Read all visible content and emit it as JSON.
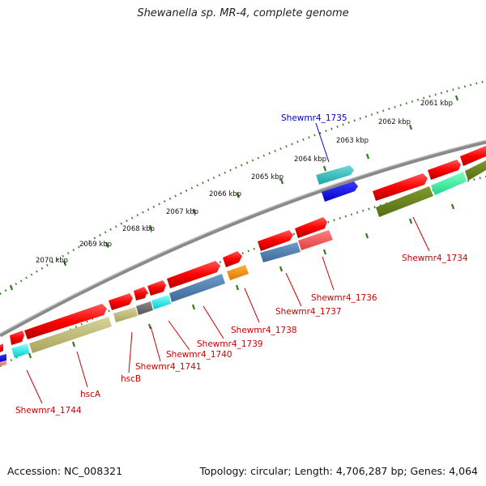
{
  "title": "Shewanella sp. MR-4, complete genome",
  "footer": {
    "accession": "Accession: NC_008321",
    "summary": "Topology: circular; Length: 4,706,287 bp; Genes: 4,064"
  },
  "colors": {
    "backbone": "#8a8a8a",
    "ticks": "#2e7d1e",
    "label_red": "#cc0000",
    "label_blue": "#0000cc"
  },
  "scale_labels": [
    "2061 kbp",
    "2062 kbp",
    "2063 kbp",
    "2064 kbp",
    "2065 kbp",
    "2066 kbp",
    "2067 kbp",
    "2068 kbp",
    "2069 kbp",
    "2070 kbp"
  ],
  "gene_labels": [
    {
      "text": "Shewmr4_1735",
      "color": "#0000cc"
    },
    {
      "text": "Shewmr4_1734",
      "color": "#cc0000"
    },
    {
      "text": "Shewmr4_1736",
      "color": "#cc0000"
    },
    {
      "text": "Shewmr4_1737",
      "color": "#cc0000"
    },
    {
      "text": "Shewmr4_1738",
      "color": "#cc0000"
    },
    {
      "text": "Shewmr4_1739",
      "color": "#cc0000"
    },
    {
      "text": "Shewmr4_1740",
      "color": "#cc0000"
    },
    {
      "text": "Shewmr4_1741",
      "color": "#cc0000"
    },
    {
      "text": "hscB",
      "color": "#cc0000"
    },
    {
      "text": "hscA",
      "color": "#cc0000"
    },
    {
      "text": "Shewmr4_1744",
      "color": "#cc0000"
    }
  ]
}
